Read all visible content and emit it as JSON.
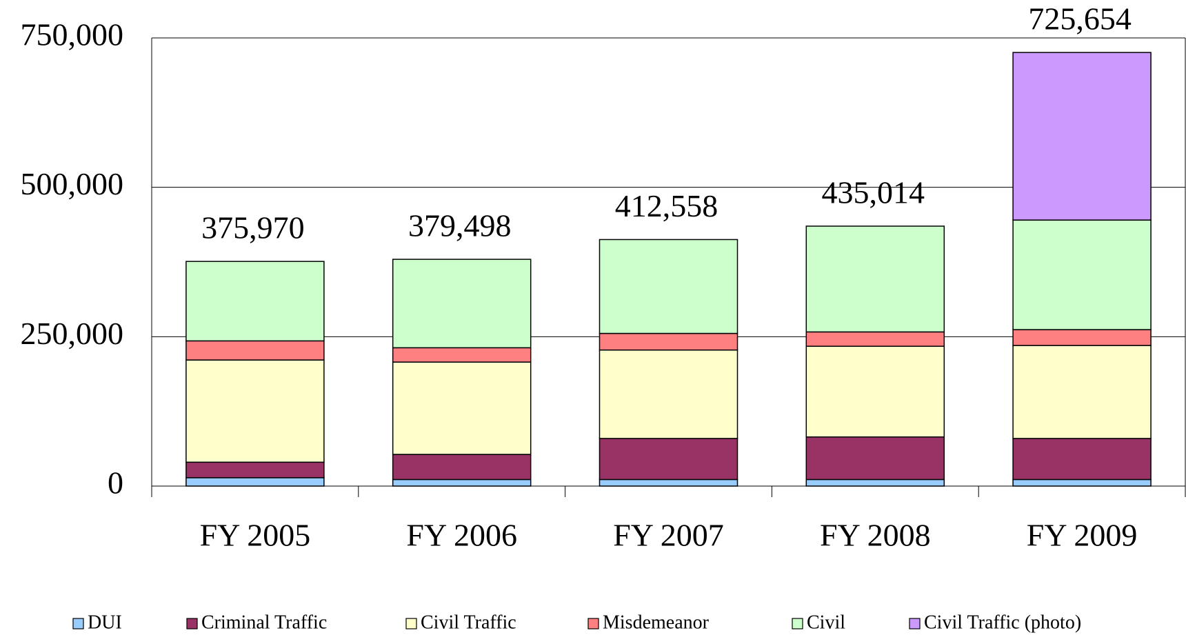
{
  "chart_data": {
    "type": "stacked_bar",
    "categories": [
      "FY 2005",
      "FY 2006",
      "FY 2007",
      "FY 2008",
      "FY 2009"
    ],
    "series": [
      {
        "name": "DUI",
        "color": "#99ccff",
        "values": [
          14000,
          11000,
          11000,
          11000,
          11000
        ]
      },
      {
        "name": "Criminal Traffic",
        "color": "#993366",
        "values": [
          26000,
          42000,
          68700,
          71200,
          68700
        ]
      },
      {
        "name": "Civil Traffic",
        "color": "#ffffcc",
        "values": [
          171000,
          154500,
          148000,
          151800,
          155600
        ]
      },
      {
        "name": "Misdemeanor",
        "color": "#ff8080",
        "values": [
          32000,
          24000,
          27800,
          24000,
          26500
        ]
      },
      {
        "name": "Civil",
        "color": "#ccffcc",
        "values": [
          132970,
          147998,
          157058,
          177014,
          183400
        ]
      },
      {
        "name": "Civil Traffic (photo)",
        "color": "#cc99ff",
        "values": [
          null,
          null,
          null,
          null,
          280454
        ]
      }
    ],
    "totals": [
      375970,
      379498,
      412558,
      435014,
      725654
    ],
    "total_labels": [
      "375,970",
      "379,498",
      "412,558",
      "435,014",
      "725,654"
    ],
    "ylim": [
      0,
      750000
    ],
    "yticks": [
      0,
      {
        "value": 250000,
        "label": "250,000"
      },
      {
        "value": 500000,
        "label": "500,000"
      },
      {
        "value": 750000,
        "label": "750,000"
      }
    ],
    "grid": true,
    "legend": "bottom"
  }
}
